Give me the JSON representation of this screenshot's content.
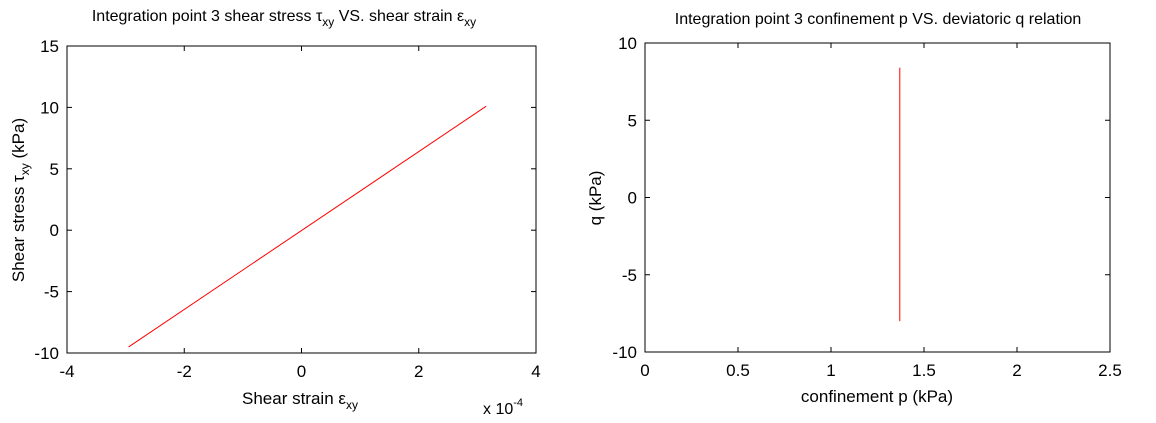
{
  "chart_data": [
    {
      "type": "line",
      "title": "Integration point 3 shear stress τxy VS. shear strain εxy",
      "title_parts": {
        "pre": "Integration point 3 shear stress ",
        "sym1": "τ",
        "sub1": "xy",
        "mid": " VS. shear strain ",
        "sym2": "ε",
        "sub2": "xy"
      },
      "xlabel": "Shear strain εxy",
      "xlabel_parts": {
        "pre": "Shear strain ",
        "sym": "ε",
        "sub": "xy"
      },
      "ylabel": "Shear stress τxy (kPa)",
      "ylabel_parts": {
        "pre": "Shear stress ",
        "sym": "τ",
        "sub": "xy",
        "post": " (kPa)"
      },
      "x_multiplier": "x 10",
      "x_multiplier_exp": "-4",
      "xlim": [
        -4,
        4
      ],
      "ylim": [
        -10,
        15
      ],
      "xticks": [
        -4,
        -2,
        0,
        2,
        4
      ],
      "yticks": [
        -10,
        -5,
        0,
        5,
        10,
        15
      ],
      "xtick_labels": [
        "-4",
        "-2",
        "0",
        "2",
        "4"
      ],
      "ytick_labels": [
        "-10",
        "-5",
        "0",
        "5",
        "10",
        "15"
      ],
      "grid": false,
      "series": [
        {
          "color": "#ff0000",
          "x": [
            -2.95,
            3.15
          ],
          "y": [
            -9.5,
            10.1
          ]
        }
      ]
    },
    {
      "type": "line",
      "title": "Integration point 3 confinement p VS. deviatoric q relation",
      "xlabel": "confinement p (kPa)",
      "ylabel": "q (kPa)",
      "xlim": [
        0,
        2.5
      ],
      "ylim": [
        -10,
        10
      ],
      "xticks": [
        0,
        0.5,
        1,
        1.5,
        2,
        2.5
      ],
      "yticks": [
        -10,
        -5,
        0,
        5,
        10
      ],
      "xtick_labels": [
        "0",
        "0.5",
        "1",
        "1.5",
        "2",
        "2.5"
      ],
      "ytick_labels": [
        "-10",
        "-5",
        "0",
        "5",
        "10"
      ],
      "grid": false,
      "series": [
        {
          "color": "#ff0000",
          "x": [
            1.37,
            1.37
          ],
          "y": [
            -8.0,
            8.4
          ]
        }
      ]
    }
  ]
}
